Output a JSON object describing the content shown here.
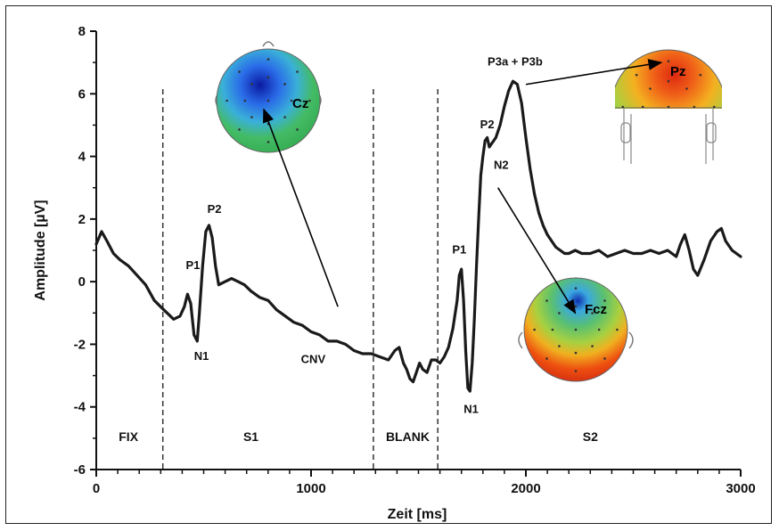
{
  "chart_data": {
    "type": "line",
    "title": "",
    "xlabel": "Zeit [ms]",
    "ylabel": "Amplitude [µV]",
    "xlim": [
      0,
      3000
    ],
    "ylim": [
      -6,
      8
    ],
    "x_ticks": [
      "0",
      "1000",
      "2000",
      "3000"
    ],
    "y_ticks": [
      "8",
      "6",
      "4",
      "2",
      "0",
      "-2",
      "-4",
      "-6"
    ],
    "grid": false,
    "series": [
      {
        "x": [
          0,
          25,
          50,
          80,
          110,
          150,
          190,
          230,
          270,
          300,
          330,
          360,
          390,
          410,
          425,
          440,
          455,
          470,
          480,
          495,
          510,
          525,
          540,
          555,
          570,
          600,
          630,
          660,
          690,
          720,
          760,
          800,
          840,
          880,
          920,
          960,
          1000,
          1040,
          1080,
          1120,
          1160,
          1200,
          1240,
          1280,
          1320,
          1360,
          1390,
          1410,
          1430,
          1445,
          1460,
          1475,
          1490,
          1505,
          1520,
          1540,
          1560,
          1580,
          1600,
          1620,
          1640,
          1660,
          1680,
          1690,
          1700,
          1710,
          1720,
          1730,
          1740,
          1750,
          1760,
          1770,
          1780,
          1790,
          1800,
          1810,
          1820,
          1830,
          1840,
          1860,
          1880,
          1900,
          1920,
          1940,
          1960,
          1980,
          2000,
          2020,
          2040,
          2060,
          2080,
          2100,
          2120,
          2140,
          2160,
          2180,
          2200,
          2230,
          2260,
          2300,
          2340,
          2380,
          2420,
          2460,
          2500,
          2540,
          2580,
          2620,
          2660,
          2700,
          2720,
          2740,
          2760,
          2780,
          2800,
          2830,
          2860,
          2890,
          2910,
          2930,
          2960,
          3000
        ],
        "y": [
          1.2,
          1.6,
          1.3,
          0.9,
          0.7,
          0.5,
          0.2,
          -0.1,
          -0.6,
          -0.8,
          -1.0,
          -1.2,
          -1.1,
          -0.8,
          -0.4,
          -0.7,
          -1.7,
          -1.9,
          -1.0,
          0.5,
          1.6,
          1.8,
          1.4,
          0.5,
          -0.1,
          0.0,
          0.1,
          0.0,
          -0.1,
          -0.3,
          -0.5,
          -0.6,
          -0.9,
          -1.1,
          -1.3,
          -1.4,
          -1.6,
          -1.7,
          -1.9,
          -1.9,
          -2.0,
          -2.2,
          -2.3,
          -2.3,
          -2.4,
          -2.5,
          -2.2,
          -2.1,
          -2.6,
          -2.8,
          -3.1,
          -3.2,
          -2.9,
          -2.6,
          -2.8,
          -2.9,
          -2.5,
          -2.5,
          -2.6,
          -2.4,
          -2.1,
          -1.5,
          -0.6,
          0.2,
          0.4,
          -0.6,
          -2.2,
          -3.4,
          -3.5,
          -2.6,
          -1.2,
          0.5,
          2.0,
          3.4,
          4.0,
          4.5,
          4.6,
          4.3,
          4.4,
          4.6,
          5.0,
          5.6,
          6.1,
          6.4,
          6.3,
          5.7,
          4.6,
          3.6,
          2.8,
          2.2,
          1.8,
          1.5,
          1.3,
          1.1,
          1.0,
          0.9,
          0.9,
          1.0,
          0.9,
          0.9,
          1.0,
          0.8,
          0.9,
          1.0,
          0.9,
          0.9,
          1.0,
          0.9,
          1.0,
          0.8,
          1.2,
          1.5,
          1.0,
          0.4,
          0.2,
          0.7,
          1.3,
          1.6,
          1.7,
          1.3,
          1.0,
          0.8
        ]
      }
    ],
    "phase_lines_ms": [
      310,
      1290,
      1590
    ],
    "phases": [
      {
        "label": "FIX",
        "x": 150
      },
      {
        "label": "S1",
        "x": 720
      },
      {
        "label": "BLANK",
        "x": 1450
      },
      {
        "label": "S2",
        "x": 2300
      }
    ],
    "annotations": [
      {
        "label": "P1",
        "x": 450,
        "y": 0.4
      },
      {
        "label": "N1",
        "x": 490,
        "y": -2.5
      },
      {
        "label": "P2",
        "x": 550,
        "y": 2.2
      },
      {
        "label": "CNV",
        "x": 1010,
        "y": -2.6
      },
      {
        "label": "P1",
        "x": 1690,
        "y": 0.9
      },
      {
        "label": "N1",
        "x": 1745,
        "y": -4.2
      },
      {
        "label": "P2",
        "x": 1820,
        "y": 4.9
      },
      {
        "label": "N2",
        "x": 1885,
        "y": 3.6
      },
      {
        "label": "P3a + P3b",
        "x": 1950,
        "y": 6.9
      }
    ],
    "topomaps": [
      {
        "label": "Cz",
        "arrow_from": [
          1125,
          -0.8
        ],
        "arrow_to": [
          780,
          5.5
        ]
      },
      {
        "label": "Fcz",
        "arrow_from": [
          1870,
          3.0
        ],
        "arrow_to": [
          2230,
          -1.0
        ]
      },
      {
        "label": "Pz",
        "arrow_from": [
          2000,
          6.3
        ],
        "arrow_to": [
          2630,
          7.0
        ]
      }
    ]
  }
}
